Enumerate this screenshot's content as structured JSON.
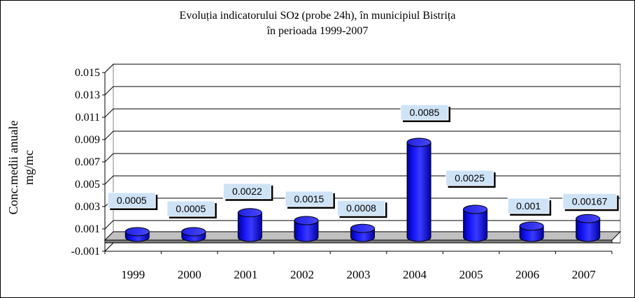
{
  "title": {
    "part1": "Evoluția indicatorului SO",
    "subscript": "2",
    "part2": " (probe 24h), în municipiul Bistrița",
    "line2": "în perioada 1999-2007"
  },
  "chart_data": {
    "type": "bar",
    "title": "Evoluția indicatorului SO2 (probe 24h), în municipiul Bistrița în perioada 1999-2007",
    "ylabel": "Conc.medii anuale mg/mc",
    "ylabel_lines": [
      "Conc.medii anuale",
      "mg/mc"
    ],
    "xlabel": "",
    "ylim": [
      -0.001,
      0.015
    ],
    "yticks": [
      "-0.001",
      "0.001",
      "0.003",
      "0.005",
      "0.007",
      "0.009",
      "0.011",
      "0.013",
      "0.015"
    ],
    "categories": [
      "1999",
      "2000",
      "2001",
      "2002",
      "2003",
      "2004",
      "2005",
      "2006",
      "2007"
    ],
    "values": [
      0.0005,
      0.0005,
      0.0022,
      0.0015,
      0.0008,
      0.0085,
      0.0025,
      0.001,
      0.00167
    ],
    "data_labels": [
      "0.0005",
      "0.0005",
      "0.0022",
      "0.0015",
      "0.0008",
      "0.0085",
      "0.0025",
      "0.001",
      "0.00167"
    ],
    "grid": true,
    "legend": "none",
    "bar_shape": "cylinder",
    "bar_color": "#1a1aff"
  }
}
